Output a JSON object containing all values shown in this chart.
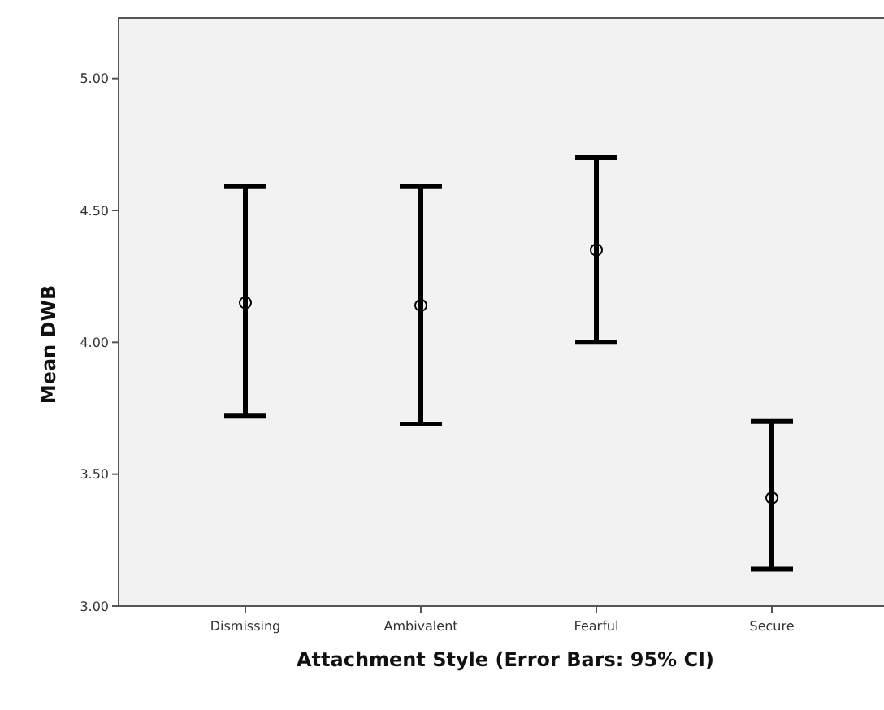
{
  "chart_data": {
    "type": "scatter",
    "xlabel": "Attachment Style (Error Bars: 95% CI)",
    "ylabel": "Mean DWB",
    "categories": [
      "Dismissing",
      "Ambivalent",
      "Fearful",
      "Secure"
    ],
    "values": [
      4.15,
      4.14,
      4.35,
      3.41
    ],
    "errors": [
      [
        3.72,
        4.59
      ],
      [
        3.69,
        4.59
      ],
      [
        4.0,
        4.7
      ],
      [
        3.14,
        3.7
      ]
    ],
    "color": "#000000",
    "marker": "circle",
    "ylim": [
      3,
      5.23
    ],
    "yticks": [
      {
        "value": 3,
        "label": "3.00"
      },
      {
        "value": 3.5,
        "label": "3.50"
      },
      {
        "value": 4,
        "label": "4.00"
      },
      {
        "value": 4.5,
        "label": "4.50"
      },
      {
        "value": 5,
        "label": "5.00"
      }
    ],
    "grid": false
  }
}
